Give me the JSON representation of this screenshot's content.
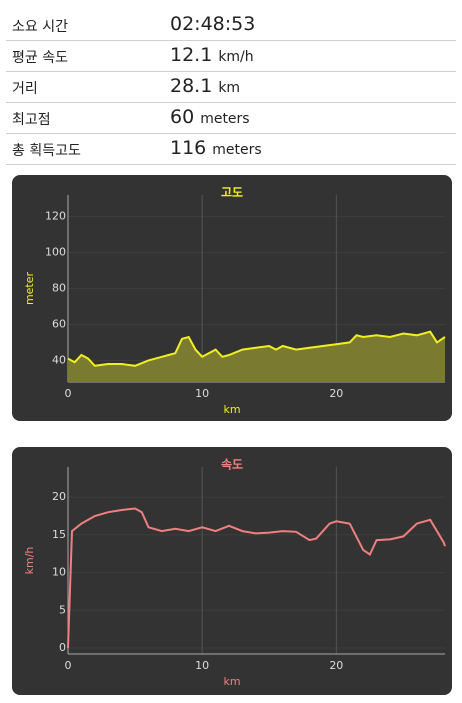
{
  "stats": [
    {
      "label": "소요 시간",
      "value": "02:48:53"
    },
    {
      "label": "평균 속도",
      "value": "12.1",
      "unit": "km/h"
    },
    {
      "label": "거리",
      "value": "28.1",
      "unit": "km"
    },
    {
      "label": "최고점",
      "value": "60",
      "unit": "meters"
    },
    {
      "label": "총 획득고도",
      "value": "116",
      "unit": "meters"
    }
  ],
  "chart_data": [
    {
      "type": "area",
      "title": "고도",
      "xlabel": "km",
      "ylabel": "meter",
      "color": "#f0f020",
      "fill": "#7a7a30",
      "x": [
        0,
        0.5,
        1,
        1.5,
        2,
        3,
        4,
        5,
        6,
        7,
        7.5,
        8,
        8.5,
        9,
        9.5,
        10,
        11,
        11.5,
        12,
        13,
        14,
        15,
        15.5,
        16,
        17,
        18,
        19,
        20,
        21,
        21.5,
        22,
        23,
        24,
        25,
        26,
        27,
        27.5,
        28.1
      ],
      "values": [
        41,
        39,
        43,
        41,
        37,
        38,
        38,
        37,
        40,
        42,
        43,
        44,
        52,
        53,
        46,
        42,
        46,
        42,
        43,
        46,
        47,
        48,
        46,
        48,
        46,
        47,
        48,
        49,
        50,
        54,
        53,
        54,
        53,
        55,
        54,
        56,
        50,
        53
      ],
      "xlim": [
        0,
        28.1
      ],
      "ylim": [
        28,
        132
      ],
      "xticks": [
        0,
        10,
        20
      ],
      "yticks": [
        40,
        60,
        80,
        100,
        120
      ],
      "grid": true
    },
    {
      "type": "line",
      "title": "속도",
      "xlabel": "km",
      "ylabel": "km/h",
      "color": "#f08080",
      "x": [
        0,
        0.3,
        1,
        2,
        3,
        4,
        5,
        5.5,
        6,
        7,
        8,
        9,
        10,
        11,
        12,
        13,
        14,
        15,
        16,
        17,
        18,
        18.5,
        19.5,
        20,
        21,
        22,
        22.5,
        23,
        24,
        25,
        26,
        27,
        28,
        28.1
      ],
      "values": [
        0,
        15.5,
        16.5,
        17.5,
        18,
        18.3,
        18.5,
        18,
        16,
        15.5,
        15.8,
        15.5,
        16,
        15.5,
        16.2,
        15.5,
        15.2,
        15.3,
        15.5,
        15.4,
        14.3,
        14.5,
        16.5,
        16.8,
        16.5,
        13,
        12.4,
        14.3,
        14.4,
        14.8,
        16.5,
        17,
        14,
        13.5
      ],
      "xlim": [
        0,
        28.1
      ],
      "ylim": [
        -0.8,
        24
      ],
      "xticks": [
        0,
        10,
        20
      ],
      "yticks": [
        0,
        5,
        10,
        15,
        20
      ],
      "grid": true
    }
  ]
}
